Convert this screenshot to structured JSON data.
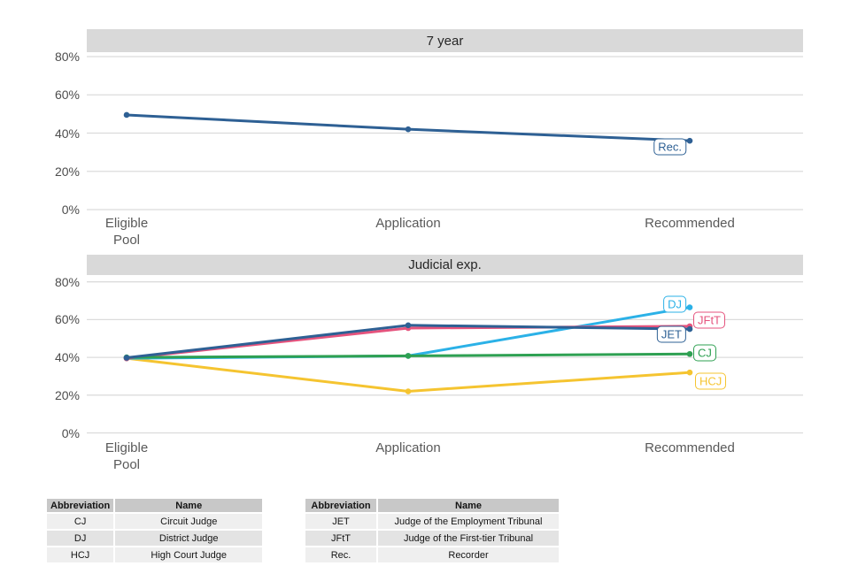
{
  "figure": {
    "background": "#ffffff",
    "gridline_color": "#dcdcdc"
  },
  "chart_data": [
    {
      "type": "line",
      "title": "7 year",
      "categories": [
        "Eligible\nPool",
        "Application",
        "Recommended"
      ],
      "xlabel": "",
      "ylabel": "",
      "ylim": [
        0,
        82
      ],
      "grid": true,
      "legend_position": "direct-labels",
      "yticks": [
        {
          "value": 0,
          "label": "0%"
        },
        {
          "value": 20,
          "label": "20%"
        },
        {
          "value": 40,
          "label": "40%"
        },
        {
          "value": 60,
          "label": "60%"
        },
        {
          "value": 80,
          "label": "80%"
        }
      ],
      "series": [
        {
          "name": "Rec.",
          "color": "#2e6094",
          "values": [
            49.5,
            42,
            36
          ],
          "z": 1,
          "label": {
            "text": "Rec.",
            "anchor": "end",
            "dx": -4,
            "dy": 6.5
          }
        }
      ]
    },
    {
      "type": "line",
      "title": "Judicial exp.",
      "categories": [
        "Eligible\nPool",
        "Application",
        "Recommended"
      ],
      "xlabel": "",
      "ylabel": "",
      "ylim": [
        0,
        83
      ],
      "grid": true,
      "legend_position": "direct-labels",
      "yticks": [
        {
          "value": 0,
          "label": "0%"
        },
        {
          "value": 20,
          "label": "20%"
        },
        {
          "value": 40,
          "label": "40%"
        },
        {
          "value": 60,
          "label": "60%"
        },
        {
          "value": 80,
          "label": "80%"
        }
      ],
      "series": [
        {
          "name": "DJ",
          "color": "#2bb1e7",
          "values": [
            39.5,
            40.8,
            66.5
          ],
          "z": 2,
          "label": {
            "text": "DJ",
            "anchor": "end",
            "dx": -4,
            "dy": -3.5
          }
        },
        {
          "name": "JFtT",
          "color": "#e5537d",
          "values": [
            39.5,
            55.5,
            56.5
          ],
          "z": 3,
          "label": {
            "text": "JFtT",
            "anchor": "start",
            "dx": 4,
            "dy": -6.5
          }
        },
        {
          "name": "JET",
          "color": "#2e6094",
          "values": [
            39.8,
            57,
            55
          ],
          "z": 5,
          "label": {
            "text": "JET",
            "anchor": "end",
            "dx": -4,
            "dy": 6
          }
        },
        {
          "name": "CJ",
          "color": "#2ea052",
          "values": [
            40,
            40.8,
            41.8
          ],
          "z": 4,
          "label": {
            "text": "CJ",
            "anchor": "start",
            "dx": 4,
            "dy": -1.5
          }
        },
        {
          "name": "HCJ",
          "color": "#f5c430",
          "values": [
            39.5,
            22,
            32
          ],
          "z": 1,
          "label": {
            "text": "HCJ",
            "anchor": "start",
            "dx": 6,
            "dy": 9.5
          }
        }
      ]
    }
  ],
  "legend_tables": [
    {
      "headers": [
        "Abbreviation",
        "Name"
      ],
      "rows": [
        [
          "CJ",
          "Circuit Judge"
        ],
        [
          "DJ",
          "District Judge"
        ],
        [
          "HCJ",
          "High Court Judge"
        ]
      ]
    },
    {
      "headers": [
        "Abbreviation",
        "Name"
      ],
      "rows": [
        [
          "JET",
          "Judge of the Employment Tribunal"
        ],
        [
          "JFtT",
          "Judge of the First-tier Tribunal"
        ],
        [
          "Rec.",
          "Recorder"
        ]
      ]
    }
  ]
}
